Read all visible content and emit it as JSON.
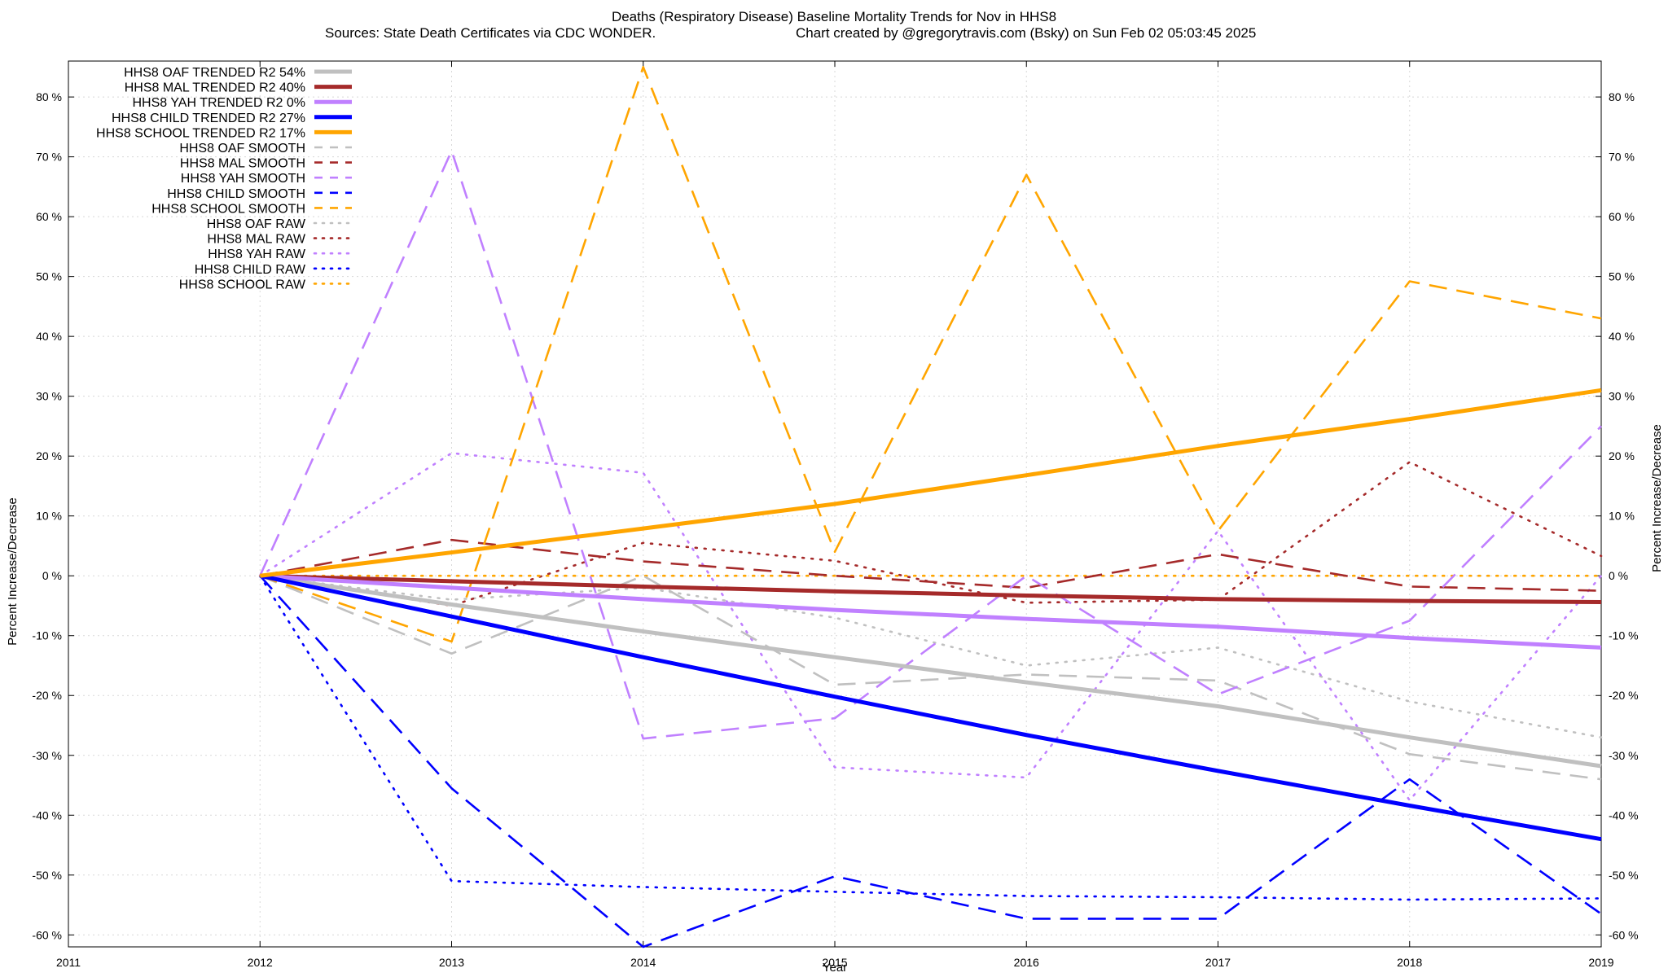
{
  "chart_data": {
    "type": "line",
    "title": "Deaths (Respiratory Disease)  Baseline Mortality Trends for Nov in HHS8",
    "subtitle_left": "Sources: State Death Certificates via CDC WONDER.",
    "subtitle_right": "Chart created by @gregorytravis.com (Bsky) on Sun Feb 02 05:03:45 2025",
    "xlabel": "Year",
    "ylabel_left": "Percent Increase/Decrease",
    "ylabel_right": "Percent Increase/Decrease",
    "xlim": [
      2011,
      2019
    ],
    "ylim": [
      -62,
      86
    ],
    "x_ticks": [
      "2011",
      "2012",
      "2013",
      "2014",
      "2015",
      "2016",
      "2017",
      "2018",
      "2019"
    ],
    "y_ticks": [
      80,
      70,
      60,
      50,
      40,
      30,
      20,
      10,
      0,
      -10,
      -20,
      -30,
      -40,
      -50,
      -60
    ],
    "y_tick_labels": [
      "80 %",
      "70 %",
      "60 %",
      "50 %",
      "40 %",
      "30 %",
      "20 %",
      "10 %",
      "0 %",
      "-10 %",
      "-20 %",
      "-30 %",
      "-40 %",
      "-50 %",
      "-60 %"
    ],
    "grid": true,
    "legend_position": "top-left",
    "x": [
      2012,
      2013,
      2014,
      2015,
      2016,
      2017,
      2018,
      2019
    ],
    "series": [
      {
        "name": "HHS8 OAF TRENDED R2  54%",
        "style": "solid",
        "color": "#c0c0c0",
        "values": [
          0,
          -4.8,
          -9.3,
          -13.6,
          -17.8,
          -21.8,
          -27,
          -31.8
        ]
      },
      {
        "name": "HHS8 MAL TRENDED R2  40%",
        "style": "solid",
        "color": "#a52a2a",
        "values": [
          0,
          -0.9,
          -1.8,
          -2.6,
          -3.3,
          -3.9,
          -4.2,
          -4.4
        ]
      },
      {
        "name": "HHS8 YAH TRENDED R2   0%",
        "style": "solid",
        "color": "#c080ff",
        "values": [
          0,
          -2,
          -3.9,
          -5.7,
          -7.2,
          -8.5,
          -10.4,
          -12
        ]
      },
      {
        "name": "HHS8 CHILD TRENDED R2  27%",
        "style": "solid",
        "color": "#0000ff",
        "values": [
          0,
          -6.8,
          -13.6,
          -20.2,
          -26.6,
          -32.6,
          -38.4,
          -44
        ]
      },
      {
        "name": "HHS8 SCHOOL TRENDED R2  17%",
        "style": "solid",
        "color": "#ffa500",
        "values": [
          0,
          3.9,
          7.9,
          12,
          16.8,
          21.7,
          26.2,
          31
        ]
      },
      {
        "name": "HHS8 OAF SMOOTH",
        "style": "dashed",
        "color": "#c0c0c0",
        "values": [
          0,
          -13,
          0,
          -18.2,
          -16.5,
          -17.5,
          -29.8,
          -34
        ]
      },
      {
        "name": "HHS8 MAL SMOOTH",
        "style": "dashed",
        "color": "#a52a2a",
        "values": [
          0,
          6,
          2.4,
          0,
          -2,
          3.6,
          -1.8,
          -2.5
        ]
      },
      {
        "name": "HHS8 YAH SMOOTH",
        "style": "dashed",
        "color": "#c080ff",
        "values": [
          0,
          71,
          -27.2,
          -23.8,
          0,
          -19.8,
          -7.5,
          25
        ]
      },
      {
        "name": "HHS8 CHILD SMOOTH",
        "style": "dashed",
        "color": "#0000ff",
        "values": [
          0,
          -35.5,
          -62,
          -50.2,
          -57.3,
          -57.3,
          -34,
          -56.5
        ]
      },
      {
        "name": "HHS8 SCHOOL SMOOTH",
        "style": "dashed",
        "color": "#ffa500",
        "values": [
          0,
          -11,
          85,
          4,
          67,
          7.5,
          49.2,
          43
        ]
      },
      {
        "name": "HHS8 OAF RAW",
        "style": "dotted",
        "color": "#c0c0c0",
        "values": [
          0,
          -4,
          -2,
          -7,
          -15,
          -12,
          -21,
          -27
        ]
      },
      {
        "name": "HHS8 MAL RAW",
        "style": "dotted",
        "color": "#a52a2a",
        "values": [
          0,
          -5,
          5.5,
          2.5,
          -4.5,
          -4,
          19,
          3.3
        ]
      },
      {
        "name": "HHS8 YAH RAW",
        "style": "dotted",
        "color": "#c080ff",
        "values": [
          0,
          20.5,
          17.2,
          -32,
          -33.7,
          7.5,
          -37.5,
          0
        ]
      },
      {
        "name": "HHS8 CHILD RAW",
        "style": "dotted",
        "color": "#0000ff",
        "values": [
          0,
          -51,
          -52,
          -52.8,
          -53.5,
          -53.7,
          -54.1,
          -53.9
        ]
      },
      {
        "name": "HHS8 SCHOOL RAW",
        "style": "dotted",
        "color": "#ffa500",
        "values": [
          0,
          0,
          0,
          0,
          0,
          0,
          0,
          0
        ]
      }
    ]
  }
}
